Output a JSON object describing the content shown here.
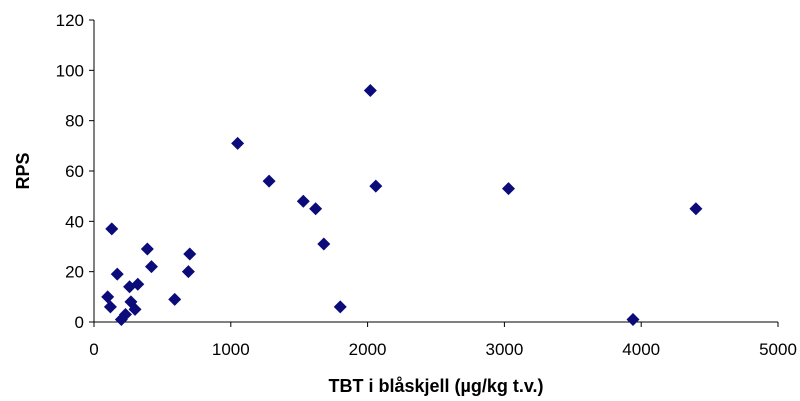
{
  "chart_data": {
    "type": "scatter",
    "title": "",
    "xlabel": "TBT i blåskjell (µg/kg t.v.)",
    "ylabel": "RPS",
    "xlim": [
      0,
      5000
    ],
    "ylim": [
      0,
      120
    ],
    "x_ticks": [
      "0",
      "1000",
      "2000",
      "3000",
      "4000",
      "5000"
    ],
    "y_ticks": [
      "0",
      "20",
      "40",
      "60",
      "80",
      "100",
      "120"
    ],
    "grid": false,
    "legend": "none",
    "marker": "diamond",
    "marker_color": "#0b0b7a",
    "points": [
      {
        "x": 100,
        "y": 10
      },
      {
        "x": 120,
        "y": 6
      },
      {
        "x": 130,
        "y": 37
      },
      {
        "x": 170,
        "y": 19
      },
      {
        "x": 200,
        "y": 1
      },
      {
        "x": 230,
        "y": 3
      },
      {
        "x": 260,
        "y": 14
      },
      {
        "x": 270,
        "y": 8
      },
      {
        "x": 300,
        "y": 5
      },
      {
        "x": 320,
        "y": 15
      },
      {
        "x": 390,
        "y": 29
      },
      {
        "x": 420,
        "y": 22
      },
      {
        "x": 590,
        "y": 9
      },
      {
        "x": 690,
        "y": 20
      },
      {
        "x": 700,
        "y": 27
      },
      {
        "x": 1050,
        "y": 71
      },
      {
        "x": 1280,
        "y": 56
      },
      {
        "x": 1530,
        "y": 48
      },
      {
        "x": 1620,
        "y": 45
      },
      {
        "x": 1680,
        "y": 31
      },
      {
        "x": 1800,
        "y": 6
      },
      {
        "x": 2020,
        "y": 92
      },
      {
        "x": 2060,
        "y": 54
      },
      {
        "x": 3030,
        "y": 53
      },
      {
        "x": 3940,
        "y": 1
      },
      {
        "x": 4400,
        "y": 45
      }
    ]
  }
}
